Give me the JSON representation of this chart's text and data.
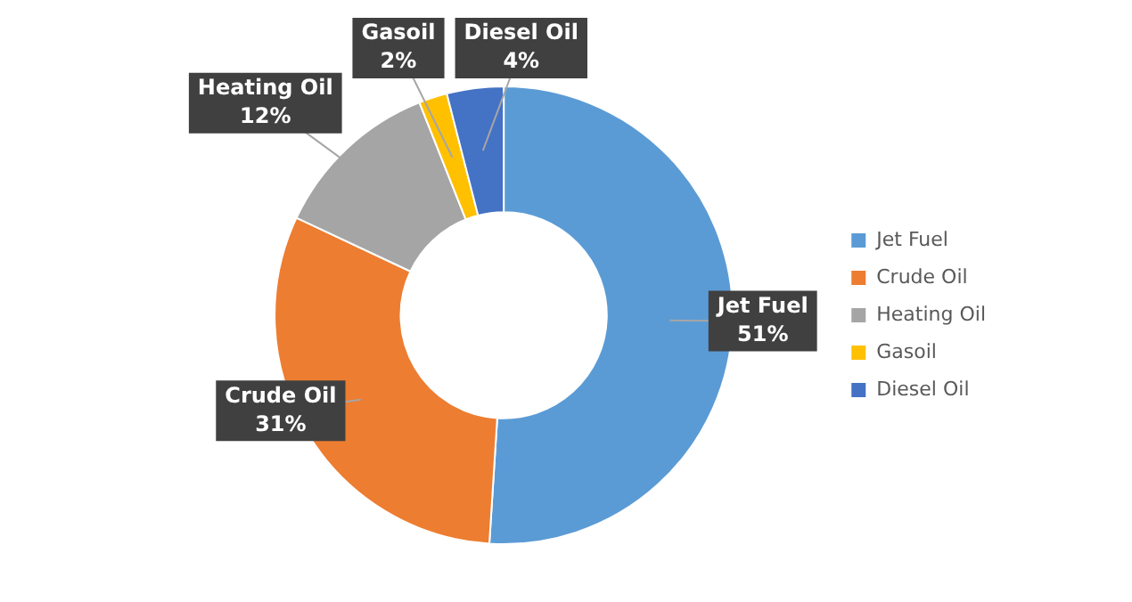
{
  "chart_data": {
    "type": "donut",
    "categories": [
      "Jet Fuel",
      "Crude Oil",
      "Heating Oil",
      "Gasoil",
      "Diesel Oil"
    ],
    "values": [
      51,
      31,
      12,
      2,
      4
    ],
    "colors": [
      "#5b9bd5",
      "#ed7d31",
      "#a5a5a5",
      "#ffc000",
      "#4472c4"
    ],
    "value_labels": [
      "51%",
      "31%",
      "12%",
      "2%",
      "4%"
    ],
    "legend": "right"
  }
}
